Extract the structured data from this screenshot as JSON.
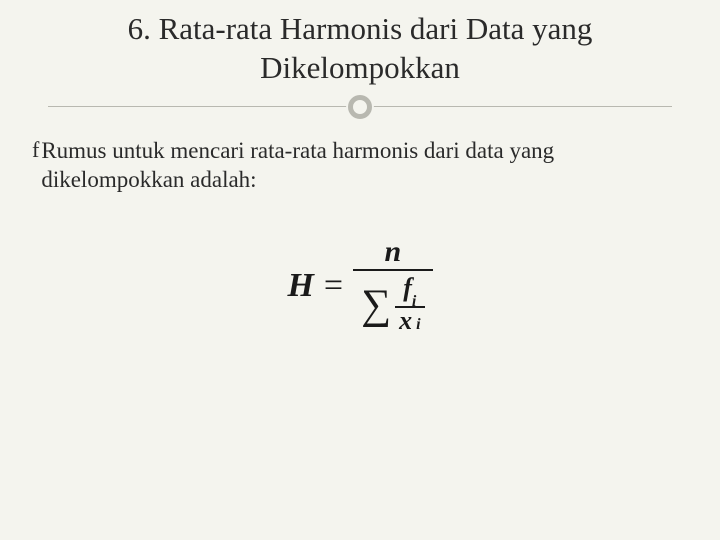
{
  "slide": {
    "title": "6. Rata-rata Harmonis dari Data yang Dikelompokkan",
    "bullet_icon": "f",
    "bullet_text": "Rumus untuk mencari rata-rata harmonis dari data yang dikelompokkan adalah:",
    "background_color": "#f4f4ee",
    "title_fontsize": 31,
    "body_fontsize": 23,
    "text_color": "#2a2a2a",
    "divider_color": "#b8b8b0"
  },
  "formula": {
    "lhs": "H",
    "eq": "=",
    "numerator": "n",
    "sigma": "∑",
    "inner_num_var": "f",
    "inner_num_sub": "i",
    "inner_den_var": "x",
    "inner_den_sub": "i",
    "font_color": "#1a1a1a",
    "lhs_fontsize": 34,
    "numerator_fontsize": 30,
    "sigma_fontsize": 42,
    "inner_fontsize": 26
  }
}
